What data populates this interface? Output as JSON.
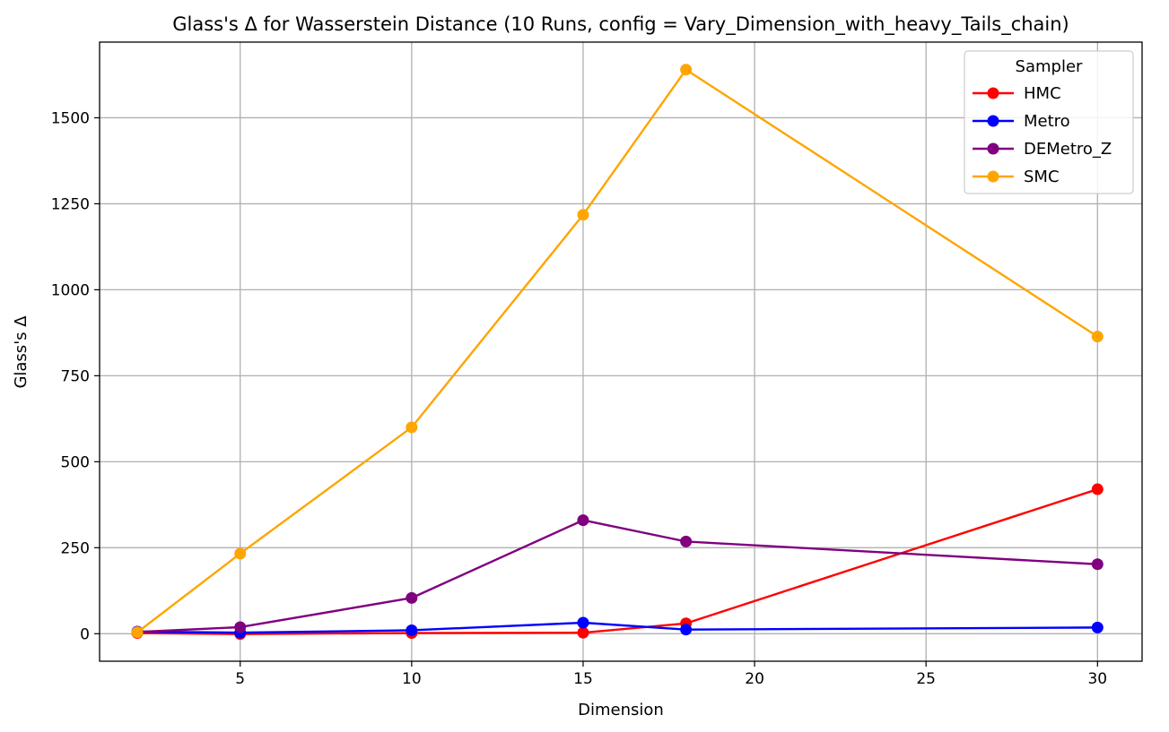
{
  "chart_data": {
    "type": "line",
    "title": "Glass's Δ for Wasserstein Distance (10 Runs, config = Vary_Dimension_with_heavy_Tails_chain)",
    "xlabel": "Dimension",
    "ylabel": "Glass's Δ",
    "xlim": [
      0.9,
      31.3
    ],
    "ylim": [
      -80,
      1720
    ],
    "xticks": [
      5,
      10,
      15,
      20,
      25,
      30
    ],
    "yticks": [
      0,
      250,
      500,
      750,
      1000,
      1250,
      1500
    ],
    "grid": true,
    "legend_title": "Sampler",
    "legend_position": "top-right",
    "x": [
      2,
      5,
      10,
      15,
      18,
      30
    ],
    "series": [
      {
        "name": "HMC",
        "color": "#ff0000",
        "values": [
          2,
          -1,
          2,
          3,
          30,
          420
        ]
      },
      {
        "name": "Metro",
        "color": "#0000ff",
        "values": [
          6,
          3,
          10,
          32,
          12,
          18
        ]
      },
      {
        "name": "DEMetro_Z",
        "color": "#800080",
        "values": [
          5,
          19,
          104,
          330,
          268,
          202
        ]
      },
      {
        "name": "SMC",
        "color": "#ffa500",
        "values": [
          4,
          233,
          600,
          1218,
          1640,
          864
        ]
      }
    ]
  }
}
